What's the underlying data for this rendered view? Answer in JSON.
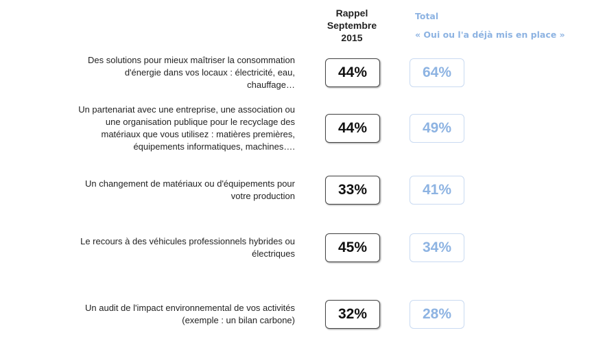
{
  "chart_data": {
    "type": "table",
    "columns": [
      "Rappel Septembre 2015",
      "Total « Oui ou l'a déjà mis en place »"
    ],
    "header": {
      "rappel": [
        "Rappel",
        "Septembre",
        "2015"
      ],
      "total": [
        "Total",
        "«  Oui ou l'a déjà mis en place »"
      ]
    },
    "rows": [
      {
        "label": [
          "Des solutions pour mieux maîtriser la consommation",
          "d'énergie dans vos locaux : électricité, eau,",
          "chauffage…"
        ],
        "rappel": "44%",
        "total": "64%"
      },
      {
        "label": [
          "Un partenariat avec une entreprise, une association ou",
          "une organisation publique  pour le recyclage des",
          "matériaux que vous utilisez : matières premières,",
          "équipements informatiques, machines…."
        ],
        "rappel": "44%",
        "total": "49%"
      },
      {
        "label": [
          "Un changement de matériaux ou d'équipements  pour",
          "votre production"
        ],
        "rappel": "33%",
        "total": "41%"
      },
      {
        "label": [
          "Le recours à des véhicules professionnels hybrides ou",
          "électriques"
        ],
        "rappel": "45%",
        "total": "34%"
      },
      {
        "label": [
          "Un audit de l'impact environnemental de vos activités",
          "(exemple : un bilan carbone)"
        ],
        "rappel": "32%",
        "total": "28%"
      }
    ],
    "colors": {
      "rappel": "#111111",
      "total": "#8db3e2"
    }
  }
}
